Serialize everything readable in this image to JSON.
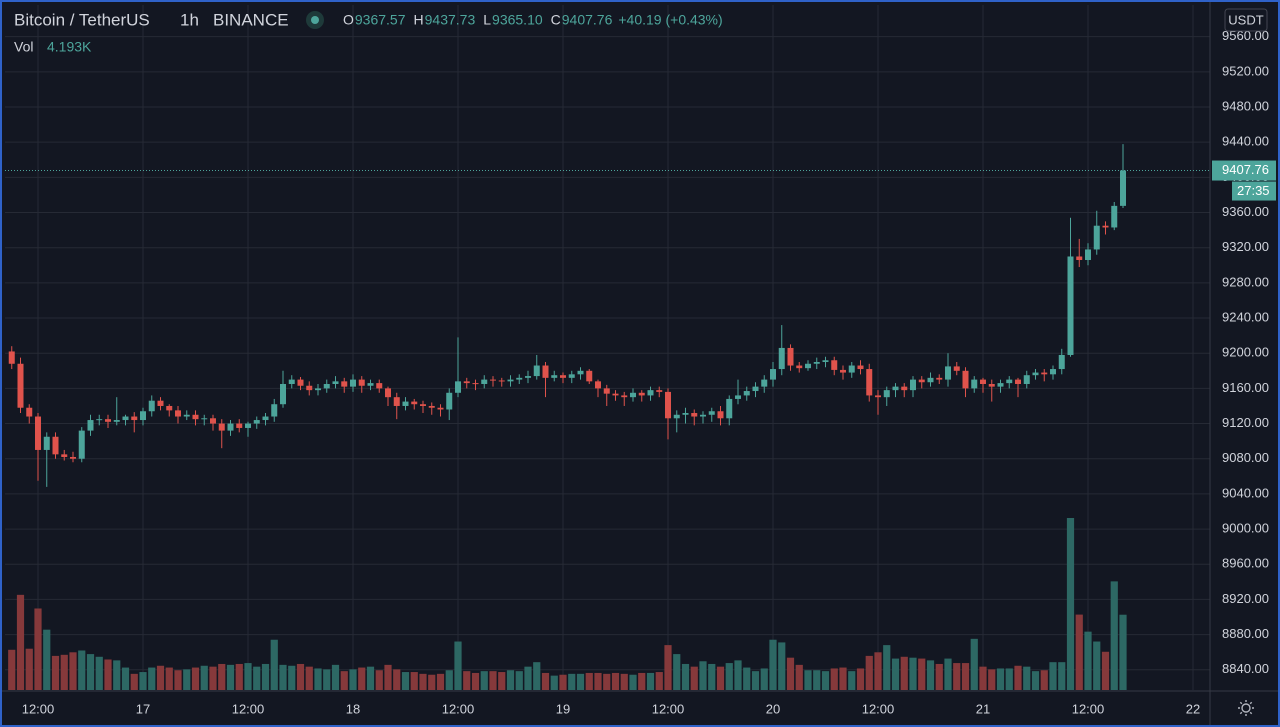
{
  "header": {
    "symbol": "Bitcoin / TetherUS",
    "interval": "1h",
    "exchange": "BINANCE",
    "ohlc": [
      {
        "label": "O",
        "value": "9367.57"
      },
      {
        "label": "H",
        "value": "9437.73"
      },
      {
        "label": "L",
        "value": "9365.10"
      },
      {
        "label": "C",
        "value": "9407.76"
      }
    ],
    "change": "+40.19 (+0.43%)",
    "volume_label": "Vol",
    "volume_value": "4.193K",
    "currency": "USDT",
    "last_price": "9407.76",
    "countdown": "27:35"
  },
  "chart_data": {
    "type": "candlestick",
    "up_color": "#4da59b",
    "down_color": "#e0534c",
    "volume_up_color": "#2d6864",
    "volume_down_color": "#86393b",
    "grid": true,
    "ylim": [
      8817,
      9596
    ],
    "yticks": [
      {
        "value": 9560,
        "label": "9560.00"
      },
      {
        "value": 9520,
        "label": "9520.00"
      },
      {
        "value": 9480,
        "label": "9480.00"
      },
      {
        "value": 9440,
        "label": "9440.00"
      },
      {
        "value": 9400,
        "label": "9400.00"
      },
      {
        "value": 9360,
        "label": "9360.00"
      },
      {
        "value": 9320,
        "label": "9320.00"
      },
      {
        "value": 9280,
        "label": "9280.00"
      },
      {
        "value": 9240,
        "label": "9240.00"
      },
      {
        "value": 9200,
        "label": "9200.00"
      },
      {
        "value": 9160,
        "label": "9160.00"
      },
      {
        "value": 9120,
        "label": "9120.00"
      },
      {
        "value": 9080,
        "label": "9080.00"
      },
      {
        "value": 9040,
        "label": "9040.00"
      },
      {
        "value": 9000,
        "label": "9000.00"
      },
      {
        "value": 8960,
        "label": "8960.00"
      },
      {
        "value": 8920,
        "label": "8920.00"
      },
      {
        "value": 8880,
        "label": "8880.00"
      },
      {
        "value": 8840,
        "label": "8840.00"
      }
    ],
    "categories": [
      null,
      null,
      null,
      "12:00",
      null,
      null,
      null,
      null,
      null,
      null,
      null,
      null,
      null,
      null,
      null,
      "17",
      null,
      null,
      null,
      null,
      null,
      null,
      null,
      null,
      null,
      null,
      null,
      "12:00",
      null,
      null,
      null,
      null,
      null,
      null,
      null,
      null,
      null,
      null,
      null,
      "18",
      null,
      null,
      null,
      null,
      null,
      null,
      null,
      null,
      null,
      null,
      null,
      "12:00",
      null,
      null,
      null,
      null,
      null,
      null,
      null,
      null,
      null,
      null,
      null,
      "19",
      null,
      null,
      null,
      null,
      null,
      null,
      null,
      null,
      null,
      null,
      null,
      "12:00",
      null,
      null,
      null,
      null,
      null,
      null,
      null,
      null,
      null,
      null,
      null,
      "20",
      null,
      null,
      null,
      null,
      null,
      null,
      null,
      null,
      null,
      null,
      null,
      "12:00",
      null,
      null,
      null,
      null,
      null,
      null,
      null,
      null,
      null,
      null,
      null,
      "21",
      null,
      null,
      null,
      null,
      null,
      null,
      null,
      null,
      null,
      null,
      null,
      "12:00",
      null,
      null,
      null,
      null,
      null,
      null,
      null,
      null,
      null,
      null,
      null,
      "22",
      null
    ],
    "open": [
      9202,
      9188,
      9138,
      9128,
      9090,
      9105,
      9085,
      9082,
      9080,
      9112,
      9124,
      9125,
      9122,
      9124,
      9128,
      9124,
      9134,
      9146,
      9140,
      9135,
      9128,
      9130,
      9125,
      9126,
      9120,
      9112,
      9120,
      9115,
      9120,
      9124,
      9128,
      9142,
      9165,
      9170,
      9163,
      9158,
      9160,
      9165,
      9168,
      9162,
      9170,
      9163,
      9166,
      9160,
      9150,
      9140,
      9145,
      9142,
      9140,
      9138,
      9136,
      9155,
      9168,
      9166,
      9165,
      9170,
      9169,
      9168,
      9170,
      9172,
      9174,
      9186,
      9172,
      9175,
      9172,
      9176,
      9180,
      9168,
      9160,
      9154,
      9152,
      9150,
      9155,
      9152,
      9158,
      9156,
      9126,
      9130,
      9132,
      9128,
      9130,
      9134,
      9126,
      9148,
      9152,
      9157,
      9162,
      9170,
      9182,
      9206,
      9186,
      9183,
      9188,
      9190,
      9192,
      9181,
      9178,
      9186,
      9182,
      9152,
      9150,
      9158,
      9162,
      9158,
      9170,
      9167,
      9172,
      9170,
      9185,
      9180,
      9160,
      9170,
      9165,
      9162,
      9166,
      9170,
      9165,
      9175,
      9178,
      9176,
      9182,
      9198,
      9310,
      9306,
      9318,
      9345,
      9343,
      9367.57,
      null,
      null,
      null,
      null,
      null,
      null,
      null,
      null,
      null
    ],
    "high": [
      9208,
      9195,
      9142,
      9132,
      9110,
      9110,
      9090,
      9088,
      9116,
      9130,
      9130,
      9130,
      9150,
      9130,
      9133,
      9138,
      9152,
      9150,
      9142,
      9140,
      9135,
      9135,
      9130,
      9130,
      9125,
      9124,
      9125,
      9122,
      9128,
      9132,
      9148,
      9180,
      9175,
      9173,
      9168,
      9165,
      9170,
      9174,
      9172,
      9176,
      9174,
      9170,
      9170,
      9162,
      9155,
      9150,
      9148,
      9146,
      9144,
      9142,
      9160,
      9218,
      9172,
      9170,
      9175,
      9174,
      9172,
      9175,
      9176,
      9180,
      9198,
      9190,
      9180,
      9178,
      9180,
      9184,
      9182,
      9170,
      9164,
      9158,
      9156,
      9160,
      9158,
      9162,
      9162,
      9160,
      9135,
      9138,
      9136,
      9134,
      9138,
      9140,
      9152,
      9170,
      9162,
      9167,
      9175,
      9190,
      9232,
      9210,
      9190,
      9192,
      9195,
      9196,
      9196,
      9186,
      9190,
      9192,
      9188,
      9158,
      9162,
      9166,
      9166,
      9174,
      9174,
      9178,
      9176,
      9200,
      9190,
      9184,
      9174,
      9172,
      9170,
      9170,
      9174,
      9172,
      9180,
      9182,
      9182,
      9186,
      9205,
      9354,
      9330,
      9325,
      9362,
      9350,
      9372,
      9437.73,
      null,
      null,
      null,
      null,
      null,
      null,
      null,
      null,
      null
    ],
    "low": [
      9182,
      9132,
      9120,
      9055,
      9048,
      9080,
      9078,
      9076,
      9076,
      9106,
      9118,
      9115,
      9118,
      9118,
      9110,
      9118,
      9128,
      9135,
      9128,
      9120,
      9124,
      9118,
      9118,
      9112,
      9092,
      9106,
      9110,
      9105,
      9114,
      9118,
      9122,
      9138,
      9160,
      9158,
      9152,
      9152,
      9155,
      9160,
      9155,
      9156,
      9155,
      9158,
      9155,
      9140,
      9125,
      9135,
      9136,
      9132,
      9130,
      9128,
      9124,
      9150,
      9160,
      9158,
      9160,
      9162,
      9162,
      9162,
      9165,
      9166,
      9170,
      9150,
      9168,
      9166,
      9166,
      9170,
      9165,
      9150,
      9140,
      9146,
      9140,
      9145,
      9145,
      9146,
      9150,
      9102,
      9110,
      9120,
      9118,
      9120,
      9122,
      9118,
      9118,
      9142,
      9146,
      9150,
      9155,
      9162,
      9175,
      9180,
      9178,
      9180,
      9182,
      9184,
      9175,
      9170,
      9172,
      9176,
      9145,
      9130,
      9140,
      9150,
      9150,
      9150,
      9160,
      9162,
      9165,
      9162,
      9175,
      9150,
      9155,
      9155,
      9145,
      9155,
      9160,
      9150,
      9160,
      9170,
      9168,
      9170,
      9176,
      9196,
      9298,
      9300,
      9312,
      9335,
      9340,
      9365.1,
      null,
      null,
      null,
      null,
      null,
      null,
      null,
      null,
      null
    ],
    "close": [
      9188,
      9138,
      9128,
      9090,
      9105,
      9085,
      9082,
      9080,
      9112,
      9124,
      9125,
      9122,
      9124,
      9128,
      9124,
      9134,
      9146,
      9140,
      9135,
      9128,
      9130,
      9125,
      9126,
      9120,
      9112,
      9120,
      9115,
      9120,
      9124,
      9128,
      9142,
      9165,
      9170,
      9163,
      9158,
      9160,
      9165,
      9168,
      9162,
      9170,
      9163,
      9166,
      9160,
      9150,
      9140,
      9145,
      9142,
      9140,
      9138,
      9136,
      9155,
      9168,
      9166,
      9165,
      9170,
      9169,
      9168,
      9170,
      9172,
      9174,
      9186,
      9172,
      9175,
      9172,
      9176,
      9180,
      9168,
      9160,
      9154,
      9152,
      9150,
      9155,
      9152,
      9158,
      9156,
      9126,
      9130,
      9132,
      9128,
      9130,
      9134,
      9126,
      9148,
      9152,
      9157,
      9162,
      9170,
      9182,
      9206,
      9186,
      9183,
      9188,
      9190,
      9192,
      9181,
      9178,
      9186,
      9182,
      9152,
      9150,
      9158,
      9162,
      9158,
      9170,
      9167,
      9172,
      9170,
      9185,
      9180,
      9160,
      9170,
      9165,
      9162,
      9166,
      9170,
      9165,
      9175,
      9178,
      9176,
      9182,
      9198,
      9310,
      9306,
      9318,
      9345,
      9343,
      9367.57,
      9407.76,
      null,
      null,
      null,
      null,
      null,
      null,
      null,
      null,
      null
    ],
    "volume": [
      2240,
      5300,
      2300,
      4540,
      3360,
      1900,
      1960,
      2100,
      2200,
      2000,
      1850,
      1700,
      1650,
      1250,
      900,
      1000,
      1250,
      1350,
      1250,
      1100,
      1150,
      1250,
      1350,
      1300,
      1450,
      1400,
      1450,
      1500,
      1300,
      1450,
      2800,
      1400,
      1350,
      1450,
      1300,
      1200,
      1150,
      1400,
      1050,
      1150,
      1250,
      1300,
      1100,
      1400,
      1150,
      1000,
      1000,
      900,
      850,
      900,
      1100,
      2700,
      1050,
      950,
      1050,
      1050,
      1000,
      1100,
      1050,
      1300,
      1550,
      950,
      800,
      850,
      900,
      900,
      950,
      950,
      900,
      950,
      900,
      850,
      950,
      950,
      1000,
      2500,
      2000,
      1450,
      1300,
      1600,
      1450,
      1300,
      1500,
      1650,
      1250,
      1050,
      1200,
      2800,
      2650,
      1800,
      1400,
      1100,
      1100,
      1050,
      1200,
      1250,
      1050,
      1200,
      1900,
      2100,
      2500,
      1750,
      1850,
      1800,
      1750,
      1650,
      1450,
      1750,
      1500,
      1500,
      2850,
      1300,
      1150,
      1200,
      1200,
      1350,
      1300,
      1050,
      1100,
      1550,
      1550,
      9580,
      4200,
      3250,
      2700,
      2130,
      6050,
      4193,
      null,
      null,
      null,
      null,
      null,
      null,
      null,
      null,
      null
    ]
  }
}
